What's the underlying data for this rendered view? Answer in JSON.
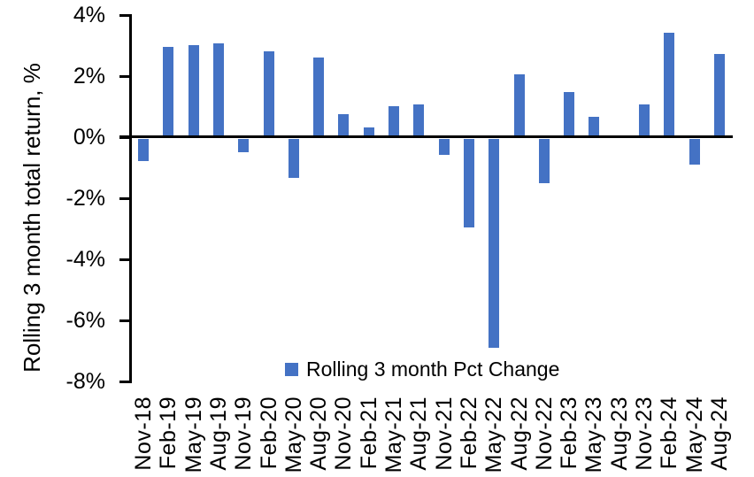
{
  "chart_data": {
    "type": "bar",
    "title": "",
    "xlabel": "",
    "ylabel": "Rolling 3 month total return, %",
    "legend": [
      "Rolling 3 month Pct Change"
    ],
    "legend_position": "bottom-center",
    "grid": false,
    "ylim": [
      -8,
      4
    ],
    "ytick_step": 2,
    "ytick_labels": [
      "4%",
      "2%",
      "0%",
      "-2%",
      "-4%",
      "-6%",
      "-8%"
    ],
    "categories": [
      "Nov-18",
      "Feb-19",
      "May-19",
      "Aug-19",
      "Nov-19",
      "Feb-20",
      "May-20",
      "Aug-20",
      "Nov-20",
      "Feb-21",
      "May-21",
      "Aug-21",
      "Nov-21",
      "Feb-22",
      "May-22",
      "Aug-22",
      "Nov-22",
      "Feb-23",
      "May-23",
      "Aug-23",
      "Nov-23",
      "Feb-24",
      "May-24",
      "Aug-24"
    ],
    "values": [
      -0.75,
      2.95,
      3.0,
      3.05,
      -0.45,
      2.8,
      -1.3,
      2.6,
      0.75,
      0.3,
      1.0,
      1.05,
      -0.55,
      -2.9,
      -6.85,
      2.05,
      -1.45,
      1.45,
      0.65,
      0.0,
      1.05,
      3.4,
      -0.85,
      2.7
    ],
    "bar_color": "#4472C4",
    "axis_color": "#000000",
    "text_color": "#000000",
    "background_color": "#FFFFFF"
  }
}
